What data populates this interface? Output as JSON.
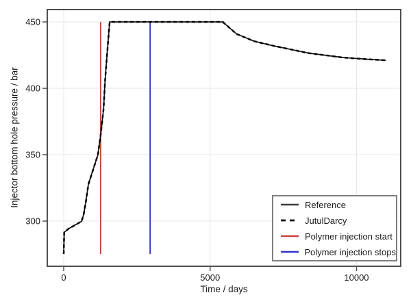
{
  "figure": {
    "background": "#ffffff"
  },
  "chart_data": {
    "type": "line",
    "title": "",
    "xlabel": "Time / days",
    "ylabel": "Injector bottom hole pressure / bar",
    "xlim": [
      -562,
      11510
    ],
    "ylim": [
      266.0,
      459.3
    ],
    "xticks": [
      0,
      5000,
      10000
    ],
    "yticks": [
      300,
      350,
      400,
      450
    ],
    "grid": true,
    "grid_color": "#e7e7e7",
    "frame_color": "#4f4f4f",
    "tick_color": "#4f4f4f",
    "legend_position": "lower right",
    "series": [
      {
        "name": "Reference",
        "style": "solid",
        "color": "#151515",
        "x": [
          0,
          15,
          160,
          400,
          610,
          680,
          750,
          845,
          1010,
          1170,
          1265,
          1360,
          1410,
          1480,
          1570,
          3000,
          5430,
          5900,
          6500,
          7190,
          8360,
          9530,
          10300,
          11000
        ],
        "y": [
          275.3,
          291.5,
          294.2,
          297.2,
          299.8,
          305.0,
          313.9,
          327.8,
          339.2,
          350.0,
          365.5,
          384.5,
          405.0,
          425.5,
          450.0,
          450.0,
          450.0,
          441.0,
          435.5,
          431.9,
          426.5,
          423.2,
          422.0,
          421.1
        ]
      },
      {
        "name": "JutulDarcy",
        "style": "dashed",
        "color": "#000000",
        "x": [
          0,
          15,
          160,
          400,
          610,
          680,
          750,
          845,
          1010,
          1170,
          1265,
          1360,
          1410,
          1480,
          1570,
          3000,
          5430,
          5900,
          6500,
          7190,
          8360,
          9530,
          10300,
          11000
        ],
        "y": [
          275.3,
          291.5,
          294.2,
          297.2,
          299.8,
          305.0,
          313.9,
          327.8,
          339.2,
          350.0,
          365.5,
          384.5,
          405.0,
          425.5,
          450.0,
          450.0,
          450.0,
          441.0,
          435.5,
          431.9,
          426.5,
          423.2,
          422.0,
          421.1
        ]
      }
    ],
    "vlines": [
      {
        "name": "Polymer injection start",
        "x": 1260,
        "ymin": 275.3,
        "ymax": 450.0,
        "color": "#c5423d"
      },
      {
        "name": "Polymer injection stops",
        "x": 2950,
        "ymin": 275.3,
        "ymax": 450.0,
        "color": "#3234cc"
      }
    ],
    "legend": [
      {
        "label": "Reference",
        "color": "#3a3a3a",
        "dash": ""
      },
      {
        "label": "JutulDarcy",
        "color": "#000000",
        "dash": "7 6"
      },
      {
        "label": "Polymer injection start",
        "color": "#c5423d",
        "dash": ""
      },
      {
        "label": "Polymer injection stops",
        "color": "#3234cc",
        "dash": ""
      }
    ]
  }
}
